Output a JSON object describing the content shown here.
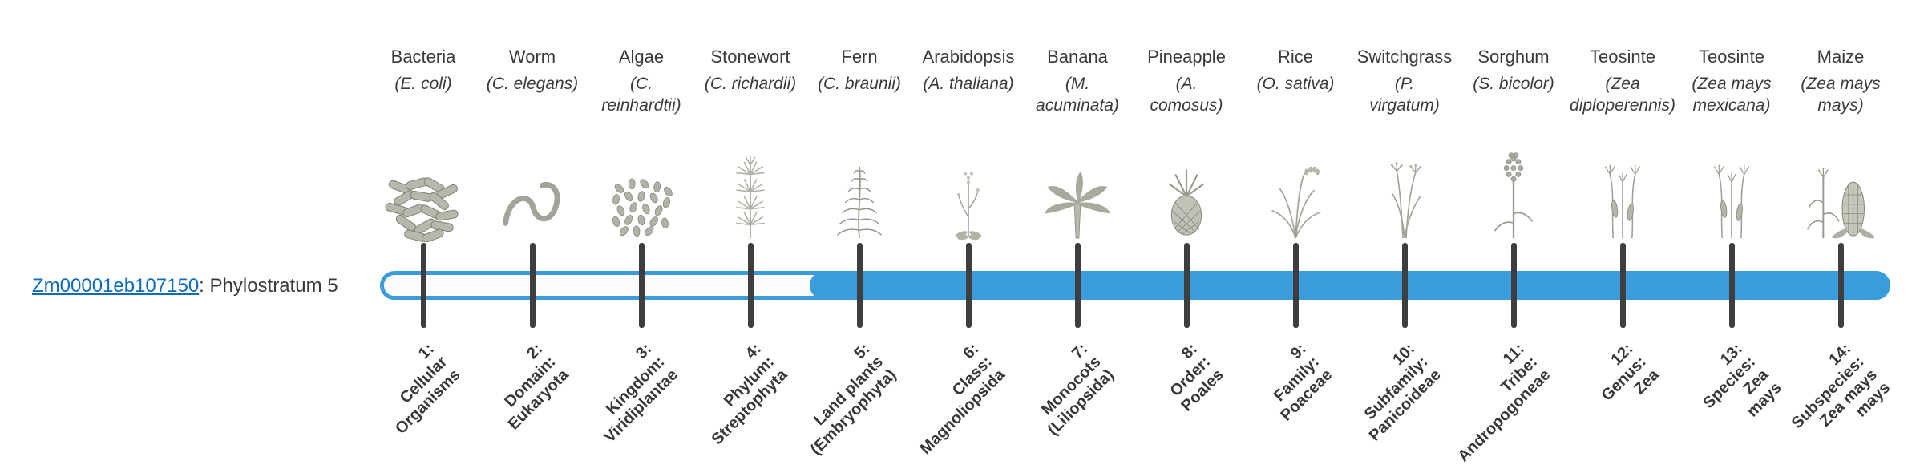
{
  "gene": {
    "id": "Zm00001eb107150",
    "suffix": ": Phylostratum 5"
  },
  "bar": {
    "fill_start_stratum": 5,
    "total_strata": 14
  },
  "colors": {
    "bar_blue": "#3b9cdb",
    "tick": "#3e3e3e",
    "link": "#0f6cbd",
    "text": "#3a3a3a"
  },
  "phylostrata": [
    {
      "num": 1,
      "organism": "Bacteria",
      "scientific_name": "(E. coli)",
      "tick_label": "1:\nCellular\nOrganisms",
      "icon": "bacteria"
    },
    {
      "num": 2,
      "organism": "Worm",
      "scientific_name": "(C. elegans)",
      "tick_label": "2:\nDomain:\nEukaryota",
      "icon": "worm"
    },
    {
      "num": 3,
      "organism": "Algae",
      "scientific_name": "(C.\nreinhardtii)",
      "tick_label": "3:\nKingdom:\nViridiplantae",
      "icon": "algae"
    },
    {
      "num": 4,
      "organism": "Stonewort",
      "scientific_name": "(C. richardii)",
      "tick_label": "4:\nPhylum:\nStreptophyta",
      "icon": "stonewort"
    },
    {
      "num": 5,
      "organism": "Fern",
      "scientific_name": "(C. braunii)",
      "tick_label": "5:\nLand plants\n(Embryophyta)",
      "icon": "fern"
    },
    {
      "num": 6,
      "organism": "Arabidopsis",
      "scientific_name": "(A. thaliana)",
      "tick_label": "6:\nClass:\nMagnoliopsida",
      "icon": "arabidopsis"
    },
    {
      "num": 7,
      "organism": "Banana",
      "scientific_name": "(M.\nacuminata)",
      "tick_label": "7:\nMonocots\n(Liliopsida)",
      "icon": "banana"
    },
    {
      "num": 8,
      "organism": "Pineapple",
      "scientific_name": "(A.\ncomosus)",
      "tick_label": "8:\nOrder:\nPoales",
      "icon": "pineapple"
    },
    {
      "num": 9,
      "organism": "Rice",
      "scientific_name": "(O. sativa)",
      "tick_label": "9:\nFamily:\nPoaceae",
      "icon": "rice"
    },
    {
      "num": 10,
      "organism": "Switchgrass",
      "scientific_name": "(P.\nvirgatum)",
      "tick_label": "10:\nSubfamily:\nPanicoideae",
      "icon": "switchgrass"
    },
    {
      "num": 11,
      "organism": "Sorghum",
      "scientific_name": "(S. bicolor)",
      "tick_label": "11:\nTribe:\nAndropogoneae",
      "icon": "sorghum"
    },
    {
      "num": 12,
      "organism": "Teosinte",
      "scientific_name": "(Zea\ndiploperennis)",
      "tick_label": "12:\nGenus:\nZea",
      "icon": "teosinte"
    },
    {
      "num": 13,
      "organism": "Teosinte",
      "scientific_name": "(Zea mays\nmexicana)",
      "tick_label": "13:\nSpecies:\nZea\nmays",
      "icon": "teosinte"
    },
    {
      "num": 14,
      "organism": "Maize",
      "scientific_name": "(Zea mays\nmays)",
      "tick_label": "14:\nSubspecies:\nZea mays\nmays",
      "icon": "maize"
    }
  ]
}
